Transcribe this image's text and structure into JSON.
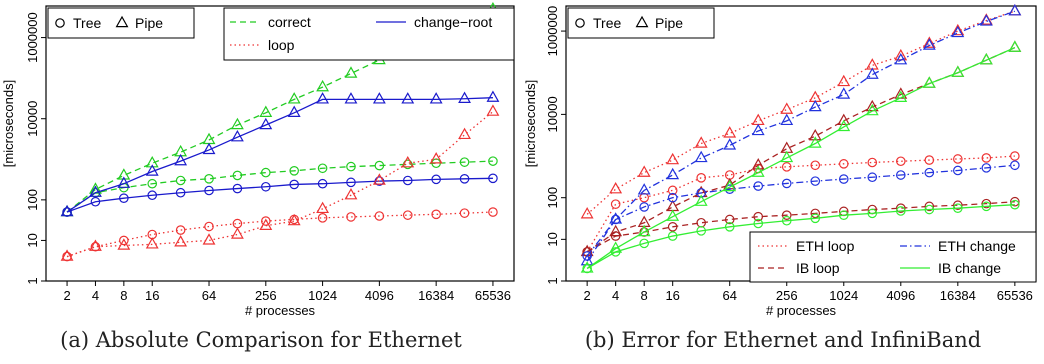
{
  "chart_data": [
    {
      "type": "line",
      "panel": "a",
      "caption": "(a) Absolute Comparison for Ethernet",
      "xlabel": "# processes",
      "ylabel": "[microseconds]",
      "xscale": "log2",
      "yscale": "log10",
      "xlim": [
        2,
        65536
      ],
      "ylim": [
        1,
        6000000
      ],
      "xticks": [
        2,
        4,
        8,
        16,
        64,
        256,
        1024,
        4096,
        16384,
        65536
      ],
      "xtick_labels": [
        "2",
        "4",
        "8",
        "16",
        "64",
        "256",
        "1024",
        "4096",
        "16384",
        "65536"
      ],
      "yticks": [
        1,
        10,
        100,
        10000,
        1000000
      ],
      "ytick_labels": [
        "1",
        "10",
        "100",
        "10000",
        "1000000"
      ],
      "marker_legend": [
        "Tree",
        "Pipe"
      ],
      "line_legend": [
        {
          "name": "correct",
          "color": "#22cc22",
          "dash": "dashed"
        },
        {
          "name": "loop",
          "color": "#ee3333",
          "dash": "dotted"
        },
        {
          "name": "change−root",
          "color": "#1a1acc",
          "dash": "solid"
        }
      ],
      "x": [
        2,
        4,
        8,
        16,
        32,
        64,
        128,
        256,
        512,
        1024,
        2048,
        4096,
        8192,
        16384,
        32768,
        65536
      ],
      "series": [
        {
          "name": "correct",
          "marker": "circle",
          "color": "#22cc22",
          "dash": "dashed",
          "values": [
            50,
            150,
            200,
            250,
            300,
            330,
            400,
            470,
            520,
            600,
            660,
            700,
            750,
            800,
            850,
            900
          ]
        },
        {
          "name": "correct",
          "marker": "triangle",
          "color": "#22cc22",
          "dash": "dashed",
          "values": [
            50,
            180,
            400,
            800,
            1500,
            3000,
            7000,
            14000,
            30000,
            60000,
            130000,
            280000,
            600000,
            1300000,
            2500000,
            5000000
          ]
        },
        {
          "name": "change−root",
          "marker": "circle",
          "color": "#1a1acc",
          "dash": "solid",
          "values": [
            50,
            90,
            110,
            130,
            150,
            170,
            190,
            210,
            240,
            250,
            270,
            290,
            300,
            320,
            330,
            340
          ]
        },
        {
          "name": "change−root",
          "marker": "triangle",
          "color": "#1a1acc",
          "dash": "solid",
          "values": [
            50,
            150,
            250,
            500,
            900,
            1700,
            3500,
            7000,
            14000,
            30000,
            30000,
            30000,
            30000,
            30000,
            31000,
            33000
          ]
        },
        {
          "name": "loop",
          "marker": "circle",
          "color": "#ee3333",
          "dash": "dotted",
          "values": [
            4,
            7,
            10,
            14,
            18,
            22,
            26,
            30,
            33,
            36,
            38,
            40,
            42,
            44,
            47,
            50
          ]
        },
        {
          "name": "loop",
          "marker": "triangle",
          "color": "#ee3333",
          "dash": "dotted",
          "values": [
            4,
            7,
            7.5,
            8,
            9,
            10,
            14,
            23,
            30,
            60,
            130,
            300,
            800,
            1000,
            4000,
            15000
          ]
        }
      ]
    },
    {
      "type": "line",
      "panel": "b",
      "caption": "(b) Error for Ethernet and InfiniBand",
      "xlabel": "# processes",
      "ylabel": "[microseconds]",
      "xscale": "log2",
      "yscale": "log10",
      "xlim": [
        2,
        65536
      ],
      "ylim": [
        1,
        4000000
      ],
      "xticks": [
        2,
        4,
        8,
        16,
        64,
        256,
        1024,
        4096,
        16384,
        65536
      ],
      "xtick_labels": [
        "2",
        "4",
        "8",
        "16",
        "64",
        "256",
        "1024",
        "4096",
        "16384",
        "65536"
      ],
      "yticks": [
        1,
        10,
        100,
        10000,
        1000000
      ],
      "ytick_labels": [
        "1",
        "10",
        "100",
        "10000",
        "1000000"
      ],
      "marker_legend": [
        "Tree",
        "Pipe"
      ],
      "line_legend": [
        {
          "name": "ETH loop",
          "color": "#ee3333",
          "dash": "dotted"
        },
        {
          "name": "IB loop",
          "color": "#aa2222",
          "dash": "dashed"
        },
        {
          "name": "ETH change",
          "color": "#2233dd",
          "dash": "dashdot"
        },
        {
          "name": "IB change",
          "color": "#33ee33",
          "dash": "solid"
        }
      ],
      "x": [
        2,
        4,
        8,
        16,
        32,
        64,
        128,
        256,
        512,
        1024,
        2048,
        4096,
        8192,
        16384,
        32768,
        65536
      ],
      "series": [
        {
          "name": "ETH loop",
          "marker": "circle",
          "color": "#ee3333",
          "dash": "dotted",
          "values": [
            5,
            70,
            100,
            150,
            300,
            350,
            500,
            550,
            600,
            650,
            700,
            750,
            800,
            850,
            900,
            1000
          ]
        },
        {
          "name": "ETH loop",
          "marker": "triangle",
          "color": "#ee3333",
          "dash": "dotted",
          "values": [
            40,
            160,
            400,
            800,
            2000,
            3500,
            7000,
            13000,
            25000,
            60000,
            150000,
            250000,
            500000,
            1000000,
            1800000,
            3000000
          ]
        },
        {
          "name": "IB loop",
          "marker": "circle",
          "color": "#aa2222",
          "dash": "dashed",
          "values": [
            5,
            12,
            15,
            20,
            25,
            30,
            35,
            38,
            42,
            47,
            52,
            56,
            62,
            66,
            72,
            80
          ]
        },
        {
          "name": "IB loop",
          "marker": "triangle",
          "color": "#aa2222",
          "dash": "dashed",
          "values": [
            5,
            15,
            25,
            60,
            130,
            200,
            600,
            1500,
            3000,
            7000,
            15000,
            30000,
            55000,
            100000,
            200000,
            400000
          ]
        },
        {
          "name": "ETH change",
          "marker": "circle",
          "color": "#2233dd",
          "dash": "dashdot",
          "values": [
            4,
            30,
            60,
            100,
            130,
            160,
            190,
            220,
            250,
            280,
            310,
            350,
            400,
            450,
            520,
            600
          ]
        },
        {
          "name": "ETH change",
          "marker": "triangle",
          "color": "#2233dd",
          "dash": "dashdot",
          "values": [
            3,
            30,
            150,
            350,
            900,
            1800,
            4000,
            7000,
            15000,
            30000,
            90000,
            200000,
            450000,
            900000,
            1700000,
            3000000
          ]
        },
        {
          "name": "IB change",
          "marker": "circle",
          "color": "#33ee33",
          "dash": "solid",
          "values": [
            2,
            5,
            8,
            12,
            16,
            20,
            24,
            28,
            32,
            38,
            42,
            48,
            52,
            56,
            62,
            68
          ]
        },
        {
          "name": "IB change",
          "marker": "triangle",
          "color": "#33ee33",
          "dash": "solid",
          "values": [
            2,
            6,
            15,
            35,
            80,
            180,
            400,
            900,
            2000,
            5000,
            12000,
            25000,
            55000,
            100000,
            200000,
            400000
          ]
        }
      ]
    }
  ]
}
